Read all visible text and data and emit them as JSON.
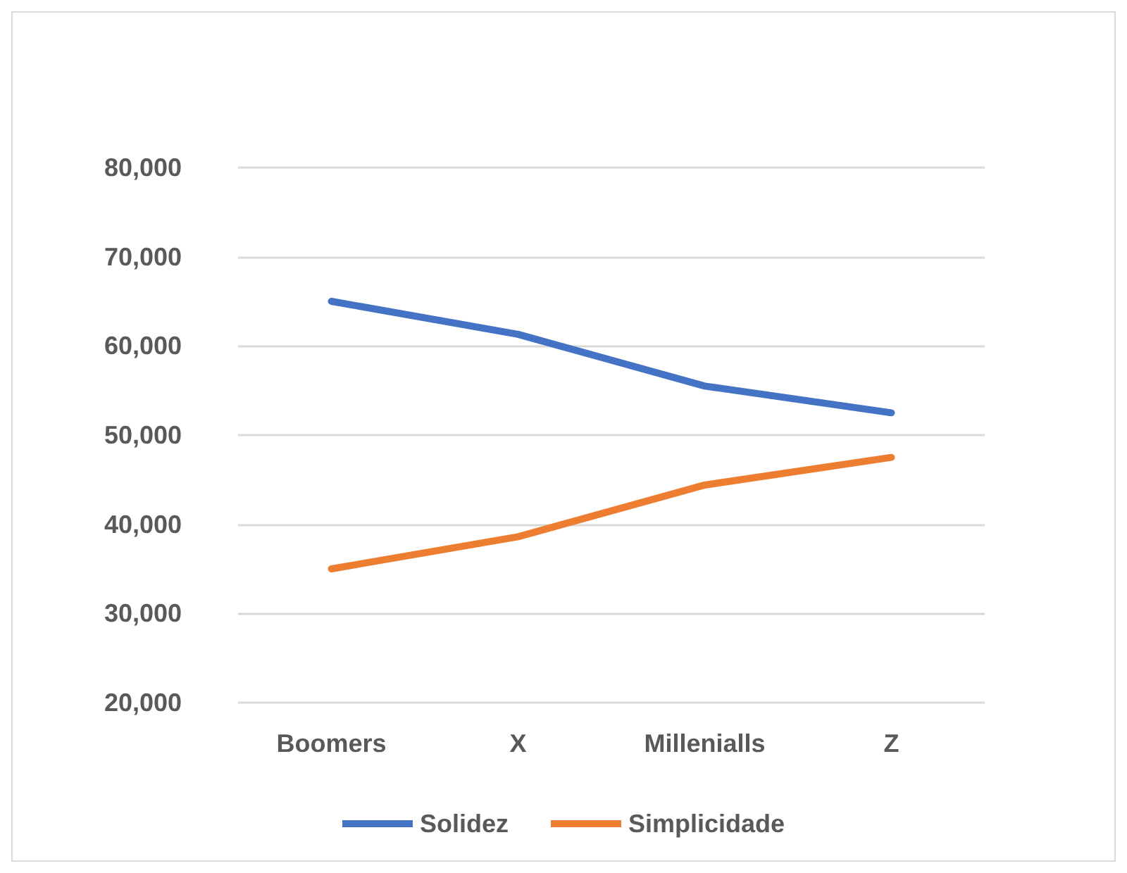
{
  "chart_data": {
    "type": "line",
    "categories": [
      "Boomers",
      "X",
      "Millenialls",
      "Z"
    ],
    "series": [
      {
        "name": "Solidez",
        "color": "#4472c4",
        "values": [
          65000,
          61300,
          55500,
          52500
        ]
      },
      {
        "name": "Simplicidade",
        "color": "#ed7d31",
        "values": [
          35000,
          38600,
          44400,
          47500
        ]
      }
    ],
    "ylim": [
      20000,
      80000
    ],
    "yticks": [
      {
        "value": 20000,
        "label": "20,000"
      },
      {
        "value": 30000,
        "label": "30,000"
      },
      {
        "value": 40000,
        "label": "40,000"
      },
      {
        "value": 50000,
        "label": "50,000"
      },
      {
        "value": 60000,
        "label": "60,000"
      },
      {
        "value": 70000,
        "label": "70,000"
      },
      {
        "value": 80000,
        "label": "80,000"
      }
    ],
    "grid": "y",
    "legend": "bottom",
    "marker": "none",
    "line_style": "solid"
  }
}
